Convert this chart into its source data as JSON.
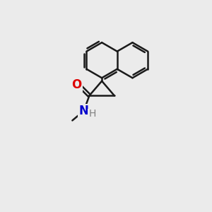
{
  "bg_color": "#ebebeb",
  "bond_color": "#1a1a1a",
  "bond_width": 1.8,
  "fig_size": [
    3.0,
    3.0
  ],
  "dpi": 100,
  "atom_labels": {
    "O": {
      "color": "#dd0000",
      "fontsize": 12,
      "fontweight": "bold"
    },
    "N": {
      "color": "#0000cc",
      "fontsize": 12,
      "fontweight": "bold"
    },
    "H": {
      "color": "#606060",
      "fontsize": 10,
      "fontweight": "normal"
    }
  }
}
